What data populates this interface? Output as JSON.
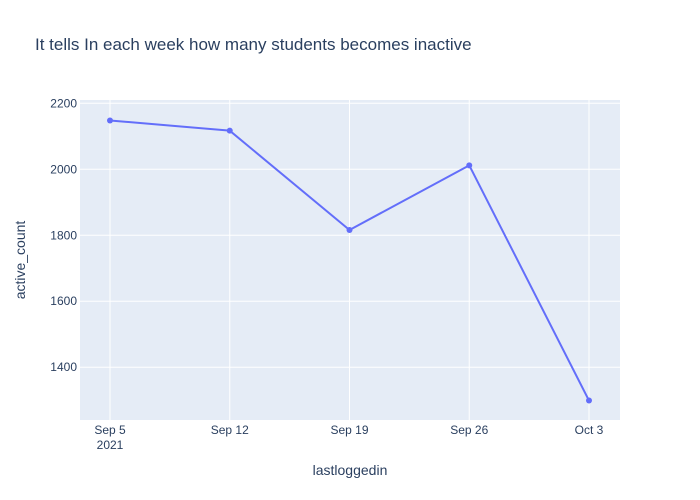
{
  "chart_data": {
    "type": "line",
    "title": "It tells In each week how many students becomes inactive",
    "xlabel": "lastloggedin",
    "ylabel": "active_count",
    "x": [
      "2021-09-05",
      "2021-09-12",
      "2021-09-19",
      "2021-09-26",
      "2021-10-03"
    ],
    "x_tick_labels": [
      "Sep 5",
      "Sep 12",
      "Sep 19",
      "Sep 26",
      "Oct 3"
    ],
    "x_tick_sublabel": "2021",
    "ylim": [
      1240,
      2210
    ],
    "y_ticks": [
      1400,
      1600,
      1800,
      2000,
      2200
    ],
    "y_tick_labels": [
      "1400",
      "1600",
      "1800",
      "2000",
      "2200"
    ],
    "series": [
      {
        "values": [
          2148,
          2117,
          1816,
          2012,
          1299
        ]
      }
    ],
    "grid": true,
    "line_color": "#636efa",
    "plot_bg_color": "#e5ecf6"
  }
}
